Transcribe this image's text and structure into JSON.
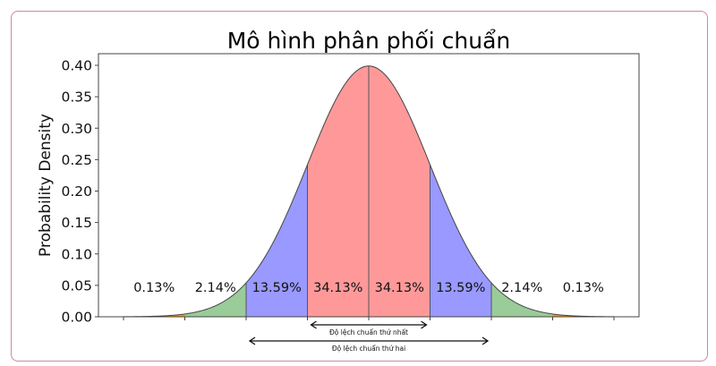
{
  "chart_data": {
    "type": "area",
    "title": "Mô hình phân phối chuẩn",
    "xlabel": "",
    "ylabel": "Probability Density",
    "ylim": [
      0.0,
      0.42
    ],
    "xlim": [
      -4.2,
      4.4
    ],
    "grid": false,
    "legend": null,
    "yticks": [
      "0.00",
      "0.05",
      "0.10",
      "0.15",
      "0.20",
      "0.25",
      "0.30",
      "0.35",
      "0.40"
    ],
    "xticks_positions": [
      -4,
      -3,
      -2,
      -1,
      0,
      1,
      2,
      3,
      4
    ],
    "distribution": {
      "mean": 0,
      "std": 1,
      "peak_density": 0.3989
    },
    "regions": [
      {
        "from": -4,
        "to": -3,
        "label": "0.13%",
        "color": "#ff9900"
      },
      {
        "from": -3,
        "to": -2,
        "label": "2.14%",
        "color": "#99cc99"
      },
      {
        "from": -2,
        "to": -1,
        "label": "13.59%",
        "color": "#9999ff"
      },
      {
        "from": -1,
        "to": 0,
        "label": "34.13%",
        "color": "#ff9999"
      },
      {
        "from": 0,
        "to": 1,
        "label": "34.13%",
        "color": "#ff9999"
      },
      {
        "from": 1,
        "to": 2,
        "label": "13.59%",
        "color": "#9999ff"
      },
      {
        "from": 2,
        "to": 3,
        "label": "2.14%",
        "color": "#99cc99"
      },
      {
        "from": 3,
        "to": 4,
        "label": "0.13%",
        "color": "#ff9900"
      }
    ],
    "annotations": [
      {
        "text": "Độ lệch chuẩn thứ nhất",
        "from": -1,
        "to": 1
      },
      {
        "text": "Độ lệch chuẩn thứ hai",
        "from": -2,
        "to": 2
      }
    ]
  }
}
